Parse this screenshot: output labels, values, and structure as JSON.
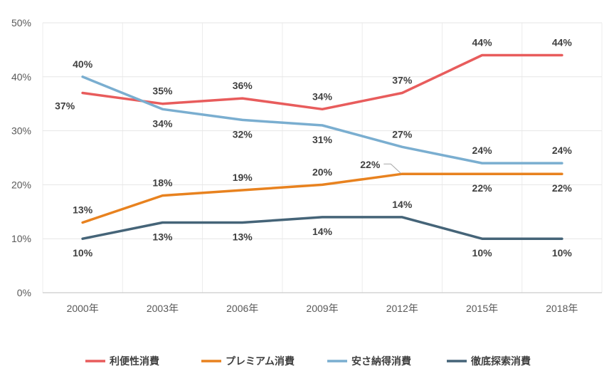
{
  "chart_data": {
    "type": "line",
    "title": "",
    "xlabel": "",
    "ylabel": "",
    "categories": [
      "2000年",
      "2003年",
      "2006年",
      "2009年",
      "2012年",
      "2015年",
      "2018年"
    ],
    "ylim": [
      0,
      50
    ],
    "yticks": [
      "0%",
      "10%",
      "20%",
      "30%",
      "40%",
      "50%"
    ],
    "grid": true,
    "legend_position": "bottom",
    "series": [
      {
        "name": "利便性消費",
        "color": "#e85c5c",
        "values": [
          37,
          35,
          36,
          34,
          37,
          44,
          44
        ],
        "labels": [
          "37%",
          "35%",
          "36%",
          "34%",
          "37%",
          "44%",
          "44%"
        ]
      },
      {
        "name": "プレミアム消費",
        "color": "#e8821f",
        "values": [
          13,
          18,
          19,
          20,
          22,
          22,
          22
        ],
        "labels": [
          "13%",
          "18%",
          "19%",
          "20%",
          "22%",
          "22%",
          "22%"
        ]
      },
      {
        "name": "安さ納得消費",
        "color": "#7aaed0",
        "values": [
          40,
          34,
          32,
          31,
          27,
          24,
          24
        ],
        "labels": [
          "40%",
          "34%",
          "32%",
          "31%",
          "27%",
          "24%",
          "24%"
        ]
      },
      {
        "name": "徹底探索消費",
        "color": "#456478",
        "values": [
          10,
          13,
          13,
          14,
          14,
          10,
          10
        ],
        "labels": [
          "10%",
          "13%",
          "13%",
          "14%",
          "14%",
          "10%",
          "10%"
        ]
      }
    ]
  }
}
